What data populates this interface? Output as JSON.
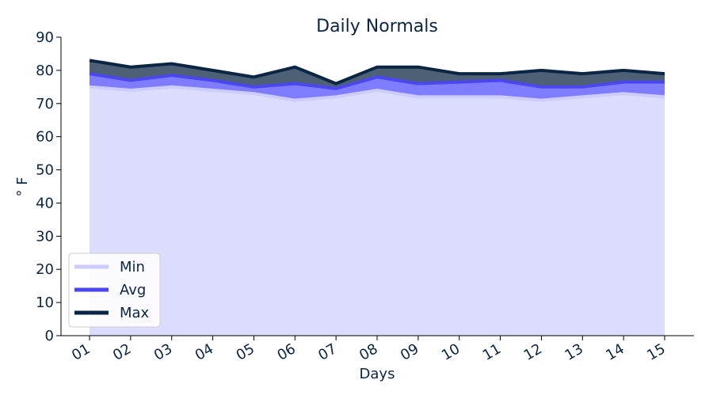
{
  "chart_data": {
    "type": "area",
    "title": "Daily Normals",
    "xlabel": "Days",
    "ylabel": "° F",
    "categories": [
      "01",
      "02",
      "03",
      "04",
      "05",
      "06",
      "07",
      "08",
      "09",
      "10",
      "11",
      "12",
      "13",
      "14",
      "15"
    ],
    "ylim": [
      0,
      90
    ],
    "yticks": [
      0,
      10,
      20,
      30,
      40,
      50,
      60,
      70,
      80,
      90
    ],
    "grid": false,
    "legend_position": "lower-left",
    "series": [
      {
        "name": "Min",
        "color": "#ccccff",
        "values": [
          75,
          74,
          75,
          74,
          73,
          71,
          72,
          74,
          72,
          72,
          72,
          71,
          72,
          73,
          72
        ]
      },
      {
        "name": "Avg",
        "color": "#4a47f0",
        "values": [
          79,
          77,
          78.5,
          77,
          75,
          76,
          74.5,
          78,
          76,
          76.5,
          77,
          75,
          75,
          76.5,
          76.5
        ]
      },
      {
        "name": "Max",
        "color": "#0b2545",
        "values": [
          83,
          81,
          82,
          80,
          78,
          81,
          76,
          81,
          81,
          79,
          79,
          80,
          79,
          80,
          79
        ]
      }
    ]
  }
}
